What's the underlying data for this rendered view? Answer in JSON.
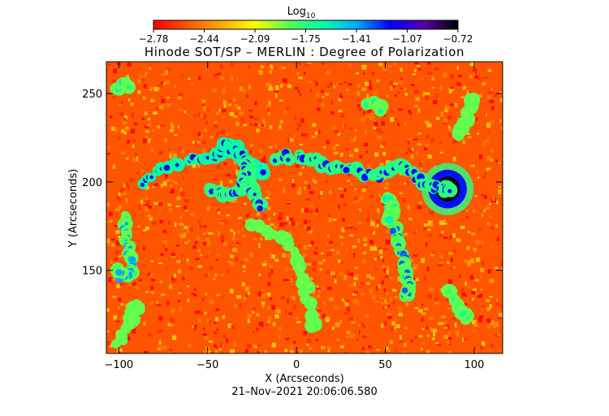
{
  "chart_data": {
    "type": "heatmap",
    "title": "Hinode SOT/SP – MERLIN : Degree of Polarization",
    "colorbar": {
      "label": "Log",
      "label_subscript": "10",
      "ticks": [
        "−2.78",
        "−2.44",
        "−2.09",
        "−1.75",
        "−1.41",
        "−1.07",
        "−0.72"
      ],
      "range": [
        -2.78,
        -0.72
      ],
      "colormap": [
        "#ff0000",
        "#ff5500",
        "#ffaa00",
        "#ffff00",
        "#55ff55",
        "#00ffaa",
        "#00aaff",
        "#0000ff",
        "#5500aa",
        "#000000"
      ]
    },
    "xlabel": "X (Arcseconds)",
    "ylabel": "Y (Arcseconds)",
    "xlim": [
      -107,
      116
    ],
    "ylim": [
      103,
      268
    ],
    "xticks": [
      -100,
      -50,
      0,
      50,
      100
    ],
    "yticks": [
      150,
      200,
      250
    ],
    "background_level": -2.6,
    "features": [
      {
        "kind": "spot",
        "x": 85,
        "y": 196,
        "r": 7,
        "level": -0.72
      },
      {
        "kind": "network",
        "path": [
          [
            -85,
            200
          ],
          [
            -75,
            208
          ],
          [
            -55,
            213
          ],
          [
            -45,
            214
          ],
          [
            -40,
            220
          ],
          [
            -35,
            219
          ],
          [
            -30,
            214
          ],
          [
            -25,
            209
          ],
          [
            -20,
            206
          ]
        ],
        "level": -1.1
      },
      {
        "kind": "network",
        "path": [
          [
            -50,
            195
          ],
          [
            -40,
            192
          ],
          [
            -32,
            196
          ],
          [
            -28,
            202
          ],
          [
            -27,
            210
          ],
          [
            -30,
            203
          ],
          [
            -25,
            195
          ],
          [
            -20,
            187
          ]
        ],
        "level": -1.2
      },
      {
        "kind": "network",
        "path": [
          [
            -10,
            214
          ],
          [
            5,
            214
          ],
          [
            20,
            209
          ],
          [
            30,
            207
          ],
          [
            45,
            203
          ],
          [
            50,
            206
          ],
          [
            60,
            209
          ],
          [
            65,
            205
          ],
          [
            75,
            198
          ],
          [
            85,
            196
          ]
        ],
        "level": -1.2
      },
      {
        "kind": "network",
        "path": [
          [
            -95,
            180
          ],
          [
            -97,
            170
          ],
          [
            -94,
            160
          ],
          [
            -93,
            150
          ],
          [
            -96,
            145
          ],
          [
            -100,
            150
          ]
        ],
        "level": -1.4
      },
      {
        "kind": "network",
        "path": [
          [
            55,
            175
          ],
          [
            58,
            165
          ],
          [
            60,
            155
          ],
          [
            63,
            145
          ],
          [
            62,
            137
          ]
        ],
        "level": -1.3
      },
      {
        "kind": "network",
        "path": [
          [
            50,
            190
          ],
          [
            55,
            185
          ],
          [
            52,
            180
          ]
        ],
        "level": -1.6
      },
      {
        "kind": "network",
        "path": [
          [
            -25,
            175
          ],
          [
            -10,
            170
          ],
          [
            0,
            160
          ],
          [
            5,
            140
          ],
          [
            10,
            120
          ]
        ],
        "level": -1.9
      },
      {
        "kind": "network",
        "path": [
          [
            90,
            225
          ],
          [
            95,
            235
          ],
          [
            98,
            240
          ],
          [
            100,
            248
          ]
        ],
        "level": -1.9
      },
      {
        "kind": "network",
        "path": [
          [
            -100,
            110
          ],
          [
            -95,
            120
          ],
          [
            -90,
            130
          ]
        ],
        "level": -1.9
      },
      {
        "kind": "network",
        "path": [
          [
            40,
            245
          ],
          [
            48,
            242
          ]
        ],
        "level": -1.6
      },
      {
        "kind": "network",
        "path": [
          [
            85,
            138
          ],
          [
            90,
            130
          ],
          [
            95,
            124
          ]
        ],
        "level": -1.7
      },
      {
        "kind": "network",
        "path": [
          [
            -100,
            253
          ],
          [
            -95,
            255
          ]
        ],
        "level": -1.6
      }
    ]
  },
  "footer": {
    "timestamp": "21–Nov–2021 20:06:06.580"
  }
}
